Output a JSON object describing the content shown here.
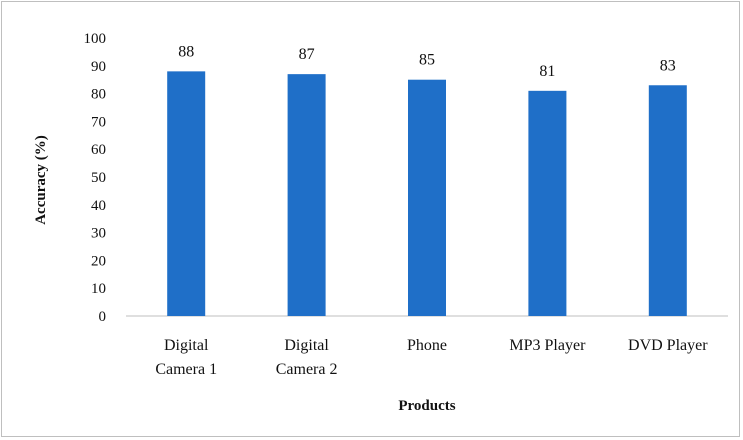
{
  "chart_data": {
    "type": "bar",
    "categories": [
      [
        "Digital",
        "Camera 1"
      ],
      [
        "Digital",
        "Camera 2"
      ],
      [
        "Phone"
      ],
      [
        "MP3 Player"
      ],
      [
        "DVD Player"
      ]
    ],
    "values": [
      88,
      87,
      85,
      81,
      83
    ],
    "title": "",
    "xlabel": "Products",
    "ylabel": "Accuracy (%)",
    "ylim": [
      0,
      100
    ],
    "yticks": [
      "0",
      "10",
      "20",
      "30",
      "40",
      "50",
      "60",
      "70",
      "80",
      "90",
      "100"
    ],
    "grid": false,
    "legend": "none",
    "bar_color": "#1f6fc8",
    "data_labels": [
      "88",
      "87",
      "85",
      "81",
      "83"
    ]
  }
}
